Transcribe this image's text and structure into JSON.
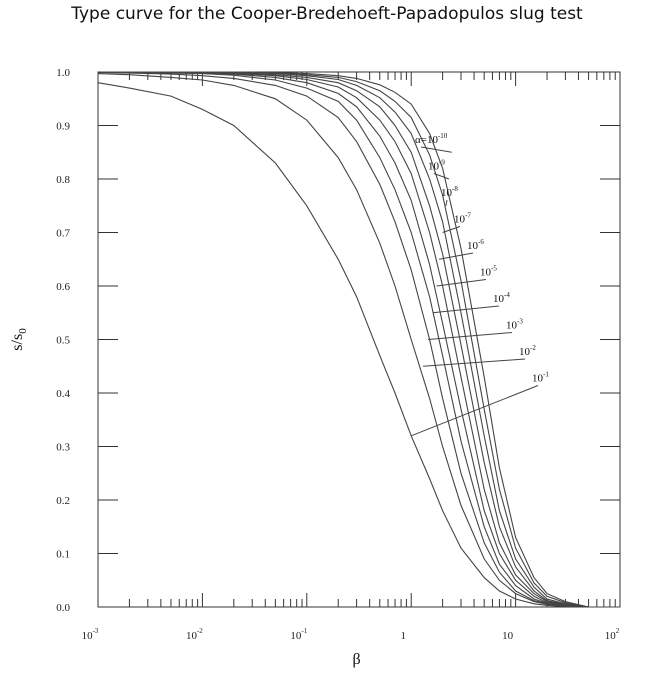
{
  "chart_data": {
    "type": "line",
    "title": "Type curve for the Cooper-Bredehoeft-Papadopulos slug test",
    "xlabel": "β",
    "ylabel": "s/s0",
    "x_scale": "log",
    "xlim": [
      0.001,
      100
    ],
    "ylim": [
      0,
      1
    ],
    "x_ticks": [
      {
        "value": 0.001,
        "base": "10",
        "exp": "-3"
      },
      {
        "value": 0.01,
        "base": "10",
        "exp": "-2"
      },
      {
        "value": 0.1,
        "base": "10",
        "exp": "-1"
      },
      {
        "value": 1,
        "base": "1",
        "exp": ""
      },
      {
        "value": 10,
        "base": "10",
        "exp": ""
      },
      {
        "value": 100,
        "base": "10",
        "exp": "2"
      }
    ],
    "y_ticks": [
      "0.0",
      "0.1",
      "0.2",
      "0.3",
      "0.4",
      "0.5",
      "0.6",
      "0.7",
      "0.8",
      "0.9",
      "1.0"
    ],
    "grid": false,
    "x": [
      0.001,
      0.002,
      0.005,
      0.01,
      0.02,
      0.05,
      0.1,
      0.2,
      0.3,
      0.5,
      0.7,
      1,
      1.5,
      2,
      3,
      5,
      7,
      10,
      15,
      20,
      30,
      50,
      100
    ],
    "series": [
      {
        "name": "10⁻¹",
        "alpha_exp": "-1",
        "label": {
          "x": 1.0,
          "y": 0.32
        },
        "values": [
          0.98,
          0.97,
          0.955,
          0.93,
          0.9,
          0.83,
          0.75,
          0.65,
          0.58,
          0.47,
          0.4,
          0.32,
          0.24,
          0.18,
          0.11,
          0.055,
          0.03,
          0.015,
          0.006,
          0.003,
          0.001,
          0.0,
          0.0
        ]
      },
      {
        "name": "10⁻²",
        "alpha_exp": "-2",
        "label": {
          "x": 1.3,
          "y": 0.45
        },
        "values": [
          0.997,
          0.995,
          0.99,
          0.985,
          0.975,
          0.95,
          0.91,
          0.84,
          0.78,
          0.68,
          0.6,
          0.5,
          0.39,
          0.3,
          0.19,
          0.09,
          0.05,
          0.025,
          0.01,
          0.005,
          0.002,
          0.0,
          0.0
        ]
      },
      {
        "name": "10⁻³",
        "alpha_exp": "-3",
        "label": {
          "x": 1.45,
          "y": 0.5
        },
        "values": [
          0.999,
          0.998,
          0.996,
          0.993,
          0.988,
          0.975,
          0.955,
          0.915,
          0.87,
          0.79,
          0.72,
          0.63,
          0.5,
          0.39,
          0.25,
          0.12,
          0.065,
          0.03,
          0.012,
          0.006,
          0.002,
          0.0,
          0.0
        ]
      },
      {
        "name": "10⁻⁴",
        "alpha_exp": "-4",
        "label": {
          "x": 1.6,
          "y": 0.55
        },
        "values": [
          1.0,
          0.999,
          0.998,
          0.997,
          0.994,
          0.985,
          0.97,
          0.945,
          0.91,
          0.84,
          0.78,
          0.7,
          0.58,
          0.47,
          0.31,
          0.15,
          0.08,
          0.04,
          0.015,
          0.007,
          0.002,
          0.0,
          0.0
        ]
      },
      {
        "name": "10⁻⁵",
        "alpha_exp": "-5",
        "label": {
          "x": 1.75,
          "y": 0.6
        },
        "values": [
          1.0,
          1.0,
          0.999,
          0.998,
          0.996,
          0.99,
          0.98,
          0.96,
          0.935,
          0.88,
          0.83,
          0.76,
          0.64,
          0.53,
          0.37,
          0.18,
          0.1,
          0.05,
          0.02,
          0.008,
          0.003,
          0.0,
          0.0
        ]
      },
      {
        "name": "10⁻⁶",
        "alpha_exp": "-6",
        "label": {
          "x": 1.85,
          "y": 0.65
        },
        "values": [
          1.0,
          1.0,
          1.0,
          0.999,
          0.997,
          0.993,
          0.986,
          0.972,
          0.952,
          0.91,
          0.87,
          0.81,
          0.7,
          0.6,
          0.43,
          0.22,
          0.12,
          0.06,
          0.025,
          0.01,
          0.004,
          0.0,
          0.0
        ]
      },
      {
        "name": "10⁻⁷",
        "alpha_exp": "-7",
        "label": {
          "x": 2.0,
          "y": 0.7
        },
        "values": [
          1.0,
          1.0,
          1.0,
          1.0,
          0.998,
          0.995,
          0.99,
          0.98,
          0.965,
          0.935,
          0.9,
          0.85,
          0.75,
          0.66,
          0.49,
          0.27,
          0.15,
          0.075,
          0.03,
          0.012,
          0.005,
          0.0,
          0.0
        ]
      },
      {
        "name": "10⁻⁸",
        "alpha_exp": "-8",
        "label": {
          "x": 2.15,
          "y": 0.75
        },
        "values": [
          1.0,
          1.0,
          1.0,
          1.0,
          0.999,
          0.997,
          0.993,
          0.986,
          0.975,
          0.952,
          0.925,
          0.885,
          0.8,
          0.72,
          0.55,
          0.32,
          0.18,
          0.09,
          0.037,
          0.015,
          0.006,
          0.0,
          0.0
        ]
      },
      {
        "name": "10⁻⁹",
        "alpha_exp": "-9",
        "label": {
          "x": 2.3,
          "y": 0.8
        },
        "values": [
          1.0,
          1.0,
          1.0,
          1.0,
          1.0,
          0.998,
          0.995,
          0.99,
          0.982,
          0.965,
          0.945,
          0.915,
          0.845,
          0.77,
          0.61,
          0.37,
          0.22,
          0.11,
          0.045,
          0.02,
          0.008,
          0.0,
          0.0
        ]
      },
      {
        "name": "α=10⁻¹⁰",
        "alpha_exp": "-10",
        "label": {
          "x": 2.45,
          "y": 0.85
        },
        "values": [
          1.0,
          1.0,
          1.0,
          1.0,
          1.0,
          0.999,
          0.997,
          0.993,
          0.988,
          0.976,
          0.962,
          0.94,
          0.885,
          0.82,
          0.67,
          0.43,
          0.26,
          0.13,
          0.055,
          0.025,
          0.01,
          0.0,
          0.0
        ]
      }
    ],
    "curve_labels": [
      {
        "prefix": "α=10",
        "exp": "-10"
      },
      {
        "prefix": "10",
        "exp": "-9"
      },
      {
        "prefix": "10",
        "exp": "-8"
      },
      {
        "prefix": "10",
        "exp": "-7"
      },
      {
        "prefix": "10",
        "exp": "-6"
      },
      {
        "prefix": "10",
        "exp": "-5"
      },
      {
        "prefix": "10",
        "exp": "-4"
      },
      {
        "prefix": "10",
        "exp": "-3"
      },
      {
        "prefix": "10",
        "exp": "-2"
      },
      {
        "prefix": "10",
        "exp": "-1"
      }
    ]
  }
}
